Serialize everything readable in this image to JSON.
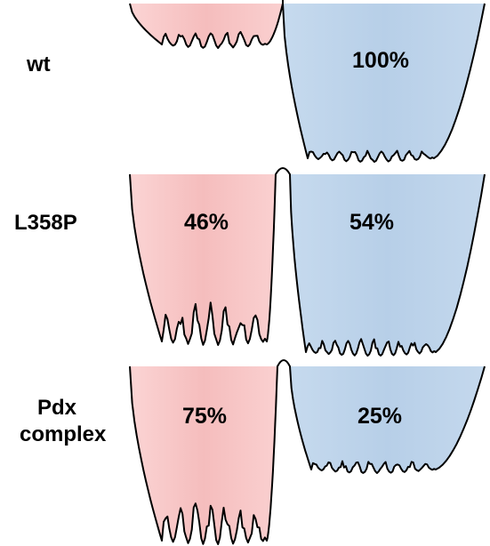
{
  "colors": {
    "left_well": "#f7c4c4",
    "right_well": "#bcd3ea",
    "outline": "#000000"
  },
  "rows": [
    {
      "label_lines": [
        "wt"
      ],
      "left_percent": "",
      "right_percent": "100%",
      "left_fraction": 0,
      "right_fraction": 1.0
    },
    {
      "label_lines": [
        "L358P"
      ],
      "left_percent": "46%",
      "right_percent": "54%",
      "left_fraction": 0.46,
      "right_fraction": 0.54
    },
    {
      "label_lines": [
        "Pdx",
        "complex"
      ],
      "left_percent": "75%",
      "right_percent": "25%",
      "left_fraction": 0.75,
      "right_fraction": 0.25
    }
  ]
}
